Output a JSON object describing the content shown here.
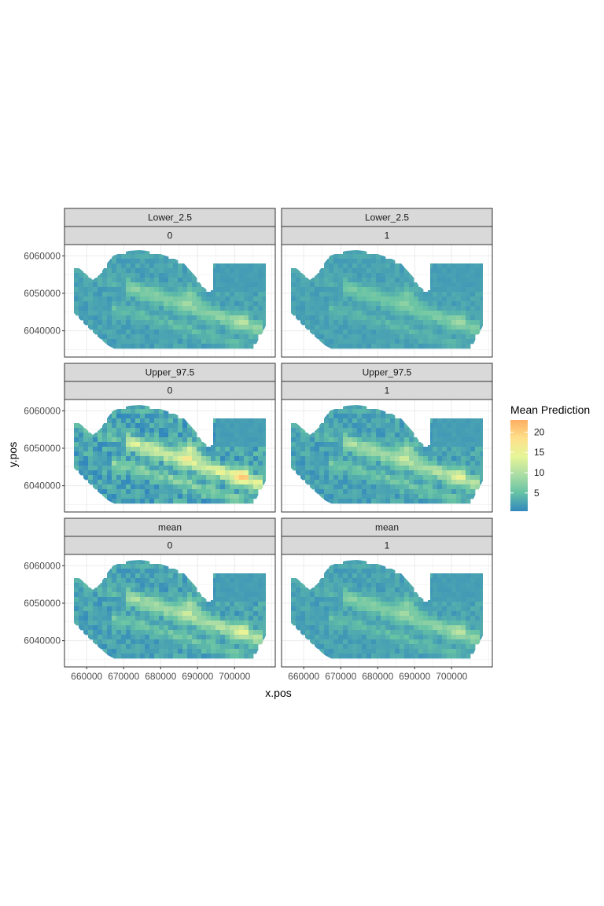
{
  "chart_data": {
    "type": "heatmap",
    "subtype": "faceted raster map",
    "xlabel": "x.pos",
    "ylabel": "y.pos",
    "x_ticks": [
      660000,
      670000,
      680000,
      690000,
      700000
    ],
    "y_ticks": [
      6040000,
      6050000,
      6060000
    ],
    "xlim": [
      654000,
      711000
    ],
    "ylim": [
      6033000,
      6063000
    ],
    "grid": true,
    "theme": "bw",
    "facet_rows": [
      "Lower_2.5",
      "Upper_97.5",
      "mean"
    ],
    "facet_cols": [
      "0",
      "1"
    ],
    "panels": [
      {
        "stat": "Lower_2.5",
        "group": "0",
        "approx_max": 11
      },
      {
        "stat": "Lower_2.5",
        "group": "1",
        "approx_max": 9
      },
      {
        "stat": "Upper_97.5",
        "group": "0",
        "approx_max": 21
      },
      {
        "stat": "Upper_97.5",
        "group": "1",
        "approx_max": 15
      },
      {
        "stat": "mean",
        "group": "0",
        "approx_max": 15
      },
      {
        "stat": "mean",
        "group": "1",
        "approx_max": 11
      }
    ],
    "legend": {
      "title": "Mean Prediction",
      "position": "right",
      "breaks": [
        5,
        10,
        15,
        20
      ],
      "range": [
        0.5,
        23
      ],
      "palette": [
        "#3288bd",
        "#66c2a5",
        "#abdda4",
        "#e6f598",
        "#fee08b",
        "#fdae61"
      ]
    }
  }
}
